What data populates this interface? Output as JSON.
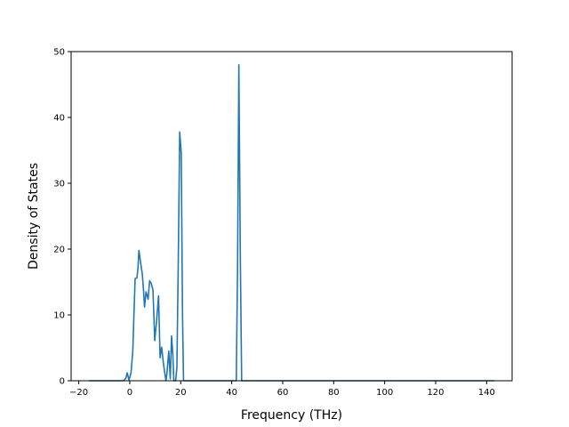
{
  "chart_data": {
    "type": "line",
    "title": "",
    "xlabel": "Frequency (THz)",
    "ylabel": "Density of States",
    "xlim": [
      -23.0,
      150.0
    ],
    "ylim": [
      0,
      50
    ],
    "xticks": [
      -20,
      0,
      20,
      40,
      60,
      80,
      100,
      120,
      140
    ],
    "yticks": [
      0,
      10,
      20,
      30,
      40,
      50
    ],
    "grid": false,
    "legend": "none",
    "series": [
      {
        "color": "#1f77b4",
        "points": [
          [
            -16.0,
            0.0
          ],
          [
            -2.5,
            0.0
          ],
          [
            -1.5,
            0.4
          ],
          [
            -1.0,
            1.2
          ],
          [
            -0.3,
            0.1
          ],
          [
            0.5,
            1.2
          ],
          [
            1.2,
            4.5
          ],
          [
            1.6,
            9.5
          ],
          [
            2.1,
            15.5
          ],
          [
            2.8,
            15.6
          ],
          [
            3.2,
            17.0
          ],
          [
            3.6,
            19.8
          ],
          [
            4.3,
            17.8
          ],
          [
            4.9,
            16.3
          ],
          [
            5.4,
            13.8
          ],
          [
            5.8,
            11.2
          ],
          [
            6.4,
            13.5
          ],
          [
            7.2,
            12.4
          ],
          [
            7.8,
            15.2
          ],
          [
            8.4,
            14.8
          ],
          [
            9.1,
            13.8
          ],
          [
            9.8,
            6.1
          ],
          [
            10.5,
            9.0
          ],
          [
            11.3,
            12.9
          ],
          [
            11.9,
            3.5
          ],
          [
            12.5,
            5.1
          ],
          [
            13.1,
            3.0
          ],
          [
            13.6,
            1.5
          ],
          [
            14.2,
            0.0
          ],
          [
            14.6,
            1.2
          ],
          [
            15.3,
            4.5
          ],
          [
            15.9,
            0.3
          ],
          [
            16.4,
            6.8
          ],
          [
            16.9,
            4.0
          ],
          [
            17.3,
            0.0
          ],
          [
            18.0,
            0.0
          ],
          [
            18.5,
            2.0
          ],
          [
            19.0,
            17.0
          ],
          [
            19.6,
            37.8
          ],
          [
            20.2,
            34.5
          ],
          [
            20.7,
            10.0
          ],
          [
            21.1,
            0.0
          ],
          [
            41.8,
            0.0
          ],
          [
            42.3,
            17.5
          ],
          [
            42.8,
            48.0
          ],
          [
            43.4,
            18.0
          ],
          [
            43.9,
            0.0
          ],
          [
            143.0,
            0.0
          ]
        ]
      }
    ]
  }
}
